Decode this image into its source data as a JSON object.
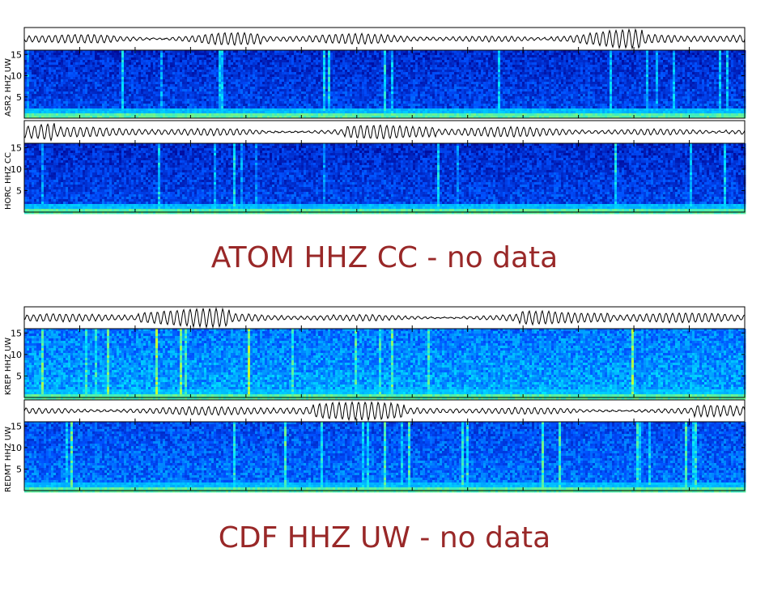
{
  "chart_data": [
    {
      "type": "heatmap",
      "ylabel": "ASR2 HHZ UW",
      "yticks": [
        5,
        10,
        15
      ],
      "ylim": [
        0,
        16
      ],
      "intensity": "low",
      "colors": {
        "low": "#00008b",
        "mid": "#0050ff",
        "high": "#00e5ff",
        "peak": "#c8ff32"
      }
    },
    {
      "type": "heatmap",
      "ylabel": "HORC HHZ CC",
      "yticks": [
        5,
        10,
        15
      ],
      "ylim": [
        0,
        16
      ],
      "intensity": "low",
      "colors": {
        "low": "#00008b",
        "mid": "#0050ff",
        "high": "#00e5ff",
        "peak": "#c8ff32"
      }
    },
    {
      "type": "heatmap",
      "ylabel": "KREP HHZ UW",
      "yticks": [
        5,
        10,
        15
      ],
      "ylim": [
        0,
        16
      ],
      "intensity": "high",
      "colors": {
        "low": "#00008b",
        "mid": "#0050ff",
        "high": "#00e5ff",
        "peak": "#c8ff32"
      }
    },
    {
      "type": "heatmap",
      "ylabel": "REDMT HHZ UW",
      "yticks": [
        5,
        10,
        15
      ],
      "ylim": [
        0,
        16
      ],
      "intensity": "medium",
      "colors": {
        "low": "#00008b",
        "mid": "#0050ff",
        "high": "#00e5ff",
        "peak": "#c8ff32"
      }
    }
  ],
  "messages": {
    "atom": "ATOM HHZ CC - no data",
    "cdf": "CDF HHZ UW - no data"
  },
  "colors": {
    "message": "#992828",
    "trace": "#000000",
    "frame": "#000000"
  }
}
